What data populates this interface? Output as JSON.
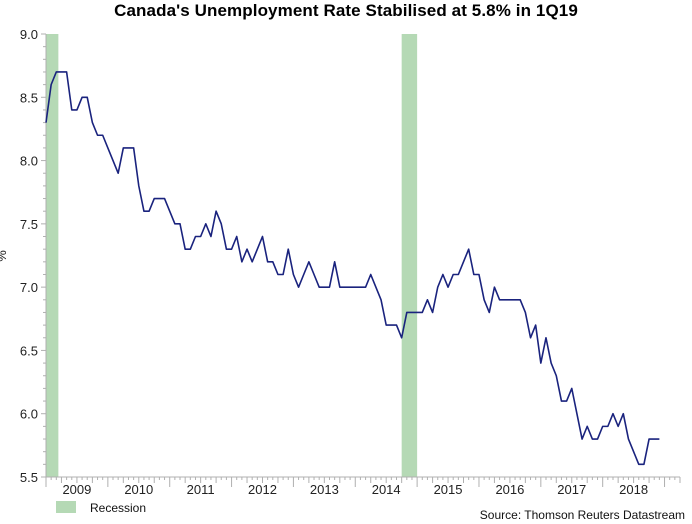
{
  "chart_data": {
    "type": "line",
    "title": "Canada's Unemployment Rate Stabilised at 5.8% in 1Q19",
    "xlabel": "",
    "ylabel": "%",
    "ylim": [
      5.5,
      9.0
    ],
    "yticks": [
      5.5,
      6.0,
      6.5,
      7.0,
      7.5,
      8.0,
      8.5,
      9.0
    ],
    "ytick_labels": [
      "5.5",
      "6.0",
      "6.5",
      "7.0",
      "7.5",
      "8.0",
      "8.5",
      "9.0"
    ],
    "xlim": [
      2009.0,
      2019.25
    ],
    "x_tick_labels": [
      "2009",
      "2010",
      "2011",
      "2012",
      "2013",
      "2014",
      "2015",
      "2016",
      "2017",
      "2018"
    ],
    "grid": false,
    "legend": "bottom-left",
    "source": "Source: Thomson Reuters Datastream",
    "recession_label": "Recession",
    "series": [
      {
        "name": "Unemployment rate",
        "color": "#1a237e",
        "start": 2009.0,
        "step_months": 1,
        "values": [
          8.3,
          8.6,
          8.7,
          8.7,
          8.7,
          8.4,
          8.4,
          8.5,
          8.5,
          8.3,
          8.2,
          8.2,
          8.1,
          8.0,
          7.9,
          8.1,
          8.1,
          8.1,
          7.8,
          7.6,
          7.6,
          7.7,
          7.7,
          7.7,
          7.6,
          7.5,
          7.5,
          7.3,
          7.3,
          7.4,
          7.4,
          7.5,
          7.4,
          7.6,
          7.5,
          7.3,
          7.3,
          7.4,
          7.2,
          7.3,
          7.2,
          7.3,
          7.4,
          7.2,
          7.2,
          7.1,
          7.1,
          7.3,
          7.1,
          7.0,
          7.1,
          7.2,
          7.1,
          7.0,
          7.0,
          7.0,
          7.2,
          7.0,
          7.0,
          7.0,
          7.0,
          7.0,
          7.0,
          7.1,
          7.0,
          6.9,
          6.7,
          6.7,
          6.7,
          6.6,
          6.8,
          6.8,
          6.8,
          6.8,
          6.9,
          6.8,
          7.0,
          7.1,
          7.0,
          7.1,
          7.1,
          7.2,
          7.3,
          7.1,
          7.1,
          6.9,
          6.8,
          7.0,
          6.9,
          6.9,
          6.9,
          6.9,
          6.9,
          6.8,
          6.6,
          6.7,
          6.4,
          6.6,
          6.4,
          6.3,
          6.1,
          6.1,
          6.2,
          6.0,
          5.8,
          5.9,
          5.8,
          5.8,
          5.9,
          5.9,
          6.0,
          5.9,
          6.0,
          5.8,
          5.7,
          5.6,
          5.6,
          5.8,
          5.8,
          5.8
        ]
      }
    ],
    "recession_bands": [
      {
        "start": 2009.0,
        "end": 2009.2
      },
      {
        "start": 2014.75,
        "end": 2015.0
      }
    ]
  },
  "colors": {
    "line": "#1a237e",
    "recession": "#b5d9b5",
    "axis": "#b0b0b0",
    "text": "#222222"
  }
}
